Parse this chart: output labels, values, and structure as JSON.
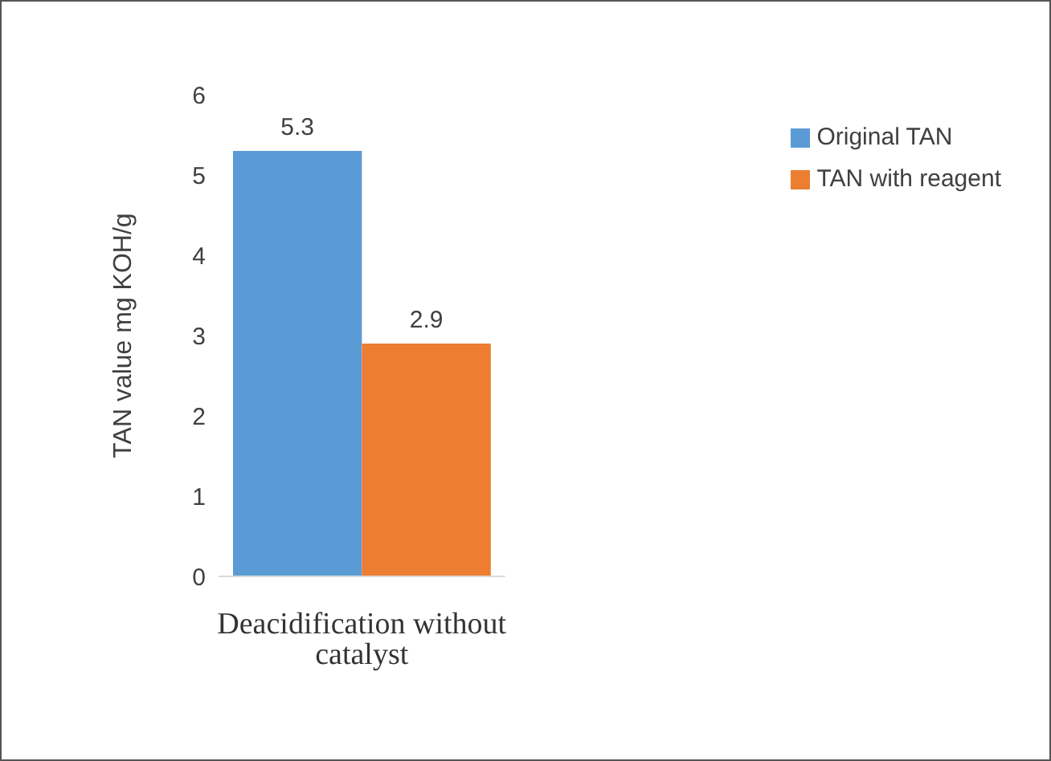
{
  "chart_data": {
    "type": "bar",
    "ylabel": "TAN value mg KOH/g",
    "categories": [
      "Deacidification without catalyst"
    ],
    "series": [
      {
        "name": "Original TAN",
        "color": "#5b9bd5",
        "values": [
          5.3
        ]
      },
      {
        "name": "TAN with reagent",
        "color": "#ed7d31",
        "values": [
          2.9
        ]
      }
    ],
    "ylim": [
      0,
      6
    ],
    "yticks": [
      0,
      1,
      2,
      3,
      4,
      5,
      6
    ],
    "grid": false,
    "legend": "top right",
    "data_labels": true
  }
}
